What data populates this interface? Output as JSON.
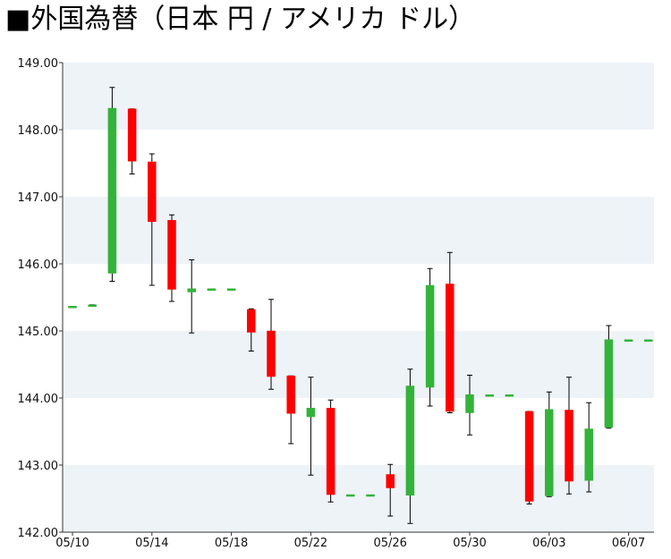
{
  "chart_data": {
    "type": "candlestick",
    "title": "■外国為替（日本 円 / アメリカ ドル）",
    "xlabel": "",
    "ylabel": "",
    "ylim": [
      142.0,
      149.0
    ],
    "y_ticks": [
      "142.00",
      "143.00",
      "144.00",
      "145.00",
      "146.00",
      "147.00",
      "148.00",
      "149.00"
    ],
    "x_ticks": [
      {
        "label": "05/10",
        "date": "2024-05-10"
      },
      {
        "label": "05/14",
        "date": "2024-05-14"
      },
      {
        "label": "05/18",
        "date": "2024-05-18"
      },
      {
        "label": "05/22",
        "date": "2024-05-22"
      },
      {
        "label": "05/26",
        "date": "2024-05-26"
      },
      {
        "label": "05/30",
        "date": "2024-05-30"
      },
      {
        "label": "06/03",
        "date": "2024-06-03"
      },
      {
        "label": "06/07",
        "date": "2024-06-07"
      }
    ],
    "grid": "alternating horizontal bands",
    "legend": "none",
    "colors": {
      "up": "#33b33a",
      "down": "#ff0000",
      "band": "#eef3f8",
      "wick": "#000000"
    },
    "candles": [
      {
        "date": "2024-05-10",
        "open": 145.37,
        "close": 145.37,
        "high": 145.37,
        "low": 145.37
      },
      {
        "date": "2024-05-11",
        "open": 145.37,
        "close": 145.39,
        "high": 145.39,
        "low": 145.37
      },
      {
        "date": "2024-05-12",
        "open": 145.86,
        "close": 148.32,
        "high": 148.63,
        "low": 145.74
      },
      {
        "date": "2024-05-13",
        "open": 148.31,
        "close": 147.53,
        "high": 148.31,
        "low": 147.34
      },
      {
        "date": "2024-05-14",
        "open": 147.52,
        "close": 146.63,
        "high": 147.64,
        "low": 145.68
      },
      {
        "date": "2024-05-15",
        "open": 146.65,
        "close": 145.62,
        "high": 146.73,
        "low": 145.44
      },
      {
        "date": "2024-05-16",
        "open": 145.58,
        "close": 145.63,
        "high": 146.06,
        "low": 144.97
      },
      {
        "date": "2024-05-17",
        "open": 145.63,
        "close": 145.63,
        "high": 145.63,
        "low": 145.63
      },
      {
        "date": "2024-05-18",
        "open": 145.63,
        "close": 145.63,
        "high": 145.63,
        "low": 145.63
      },
      {
        "date": "2024-05-19",
        "open": 145.32,
        "close": 144.98,
        "high": 145.33,
        "low": 144.7
      },
      {
        "date": "2024-05-20",
        "open": 145.0,
        "close": 144.32,
        "high": 145.47,
        "low": 144.13
      },
      {
        "date": "2024-05-21",
        "open": 144.33,
        "close": 143.77,
        "high": 144.33,
        "low": 143.32
      },
      {
        "date": "2024-05-22",
        "open": 143.72,
        "close": 143.85,
        "high": 144.31,
        "low": 142.85
      },
      {
        "date": "2024-05-23",
        "open": 143.85,
        "close": 142.56,
        "high": 143.97,
        "low": 142.45
      },
      {
        "date": "2024-05-24",
        "open": 142.56,
        "close": 142.56,
        "high": 142.56,
        "low": 142.56
      },
      {
        "date": "2024-05-25",
        "open": 142.56,
        "close": 142.56,
        "high": 142.56,
        "low": 142.56
      },
      {
        "date": "2024-05-26",
        "open": 142.86,
        "close": 142.66,
        "high": 143.01,
        "low": 142.24
      },
      {
        "date": "2024-05-27",
        "open": 142.55,
        "close": 144.18,
        "high": 144.43,
        "low": 142.13
      },
      {
        "date": "2024-05-28",
        "open": 144.16,
        "close": 145.68,
        "high": 145.93,
        "low": 143.88
      },
      {
        "date": "2024-05-29",
        "open": 145.7,
        "close": 143.8,
        "high": 146.17,
        "low": 143.78
      },
      {
        "date": "2024-05-30",
        "open": 143.78,
        "close": 144.05,
        "high": 144.34,
        "low": 143.45
      },
      {
        "date": "2024-05-31",
        "open": 144.05,
        "close": 144.05,
        "high": 144.05,
        "low": 144.05
      },
      {
        "date": "2024-06-01",
        "open": 144.05,
        "close": 144.05,
        "high": 144.05,
        "low": 144.05
      },
      {
        "date": "2024-06-02",
        "open": 143.8,
        "close": 142.46,
        "high": 143.8,
        "low": 142.42
      },
      {
        "date": "2024-06-03",
        "open": 142.54,
        "close": 143.83,
        "high": 144.09,
        "low": 142.53
      },
      {
        "date": "2024-06-04",
        "open": 143.82,
        "close": 142.76,
        "high": 144.31,
        "low": 142.57
      },
      {
        "date": "2024-06-05",
        "open": 142.77,
        "close": 143.54,
        "high": 143.93,
        "low": 142.6
      },
      {
        "date": "2024-06-06",
        "open": 143.56,
        "close": 144.87,
        "high": 145.08,
        "low": 143.55
      },
      {
        "date": "2024-06-07",
        "open": 144.87,
        "close": 144.87,
        "high": 144.87,
        "low": 144.87
      },
      {
        "date": "2024-06-08",
        "open": 144.87,
        "close": 144.87,
        "high": 144.87,
        "low": 144.87
      }
    ]
  }
}
